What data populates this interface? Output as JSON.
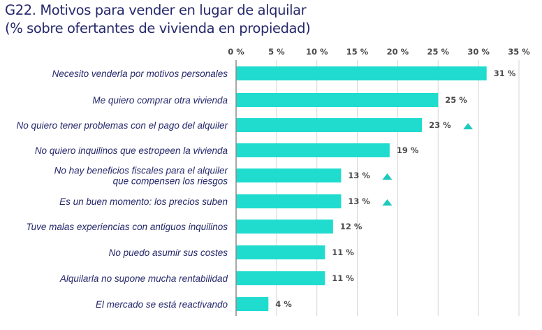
{
  "chart_data": {
    "type": "bar",
    "orientation": "horizontal",
    "title": "G22. Motivos para vender en lugar de alquilar",
    "subtitle": "(% sobre ofertantes de vivienda en propiedad)",
    "xlabel": "",
    "ylabel": "",
    "xlim": [
      0,
      35
    ],
    "xticks": [
      "0 %",
      "5 %",
      "10 %",
      "15 %",
      "20 %",
      "25 %",
      "30 %",
      "35 %"
    ],
    "tick_values": [
      0,
      5,
      10,
      15,
      20,
      25,
      30,
      35
    ],
    "grid": "vertical",
    "categories": [
      [
        "Necesito venderla por motivos personales"
      ],
      [
        "Me quiero comprar otra vivienda"
      ],
      [
        "No quiero tener problemas con el pago del alquiler"
      ],
      [
        "No quiero inquilinos que estropeen la vivienda"
      ],
      [
        "No hay beneficios fiscales para el alquiler",
        "que compensen los riesgos"
      ],
      [
        "Es un buen momento: los precios suben"
      ],
      [
        "Tuve malas experiencias con antiguos inquilinos"
      ],
      [
        "No puedo asumir sus costes"
      ],
      [
        "Alquilarla no supone mucha rentabilidad"
      ],
      [
        "El mercado se está reactivando"
      ]
    ],
    "values": [
      31,
      25,
      23,
      19,
      13,
      13,
      12,
      11,
      11,
      4
    ],
    "data_labels": [
      "31 %",
      "25 %",
      "23 %",
      "19 %",
      "13 %",
      "13 %",
      "12 %",
      "11 %",
      "11 %",
      "4 %"
    ],
    "increase_marker": [
      false,
      false,
      true,
      false,
      true,
      true,
      false,
      false,
      false,
      false
    ],
    "colors": {
      "bar": "#1fdccf",
      "marker": "#1fc9be",
      "title": "#25286b",
      "category_text": "#25286b",
      "grid": "#d6d6d6",
      "axis": "#8c8c8c"
    }
  }
}
